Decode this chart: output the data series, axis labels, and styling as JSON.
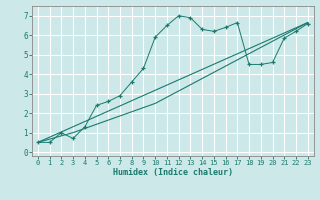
{
  "title": "",
  "xlabel": "Humidex (Indice chaleur)",
  "background_color": "#cce8e8",
  "grid_color": "#b0d4d4",
  "line_color": "#1a7a6e",
  "xlim": [
    -0.5,
    23.5
  ],
  "ylim": [
    -0.2,
    7.5
  ],
  "xticks": [
    0,
    1,
    2,
    3,
    4,
    5,
    6,
    7,
    8,
    9,
    10,
    11,
    12,
    13,
    14,
    15,
    16,
    17,
    18,
    19,
    20,
    21,
    22,
    23
  ],
  "yticks": [
    0,
    1,
    2,
    3,
    4,
    5,
    6,
    7
  ],
  "series1_x": [
    0,
    1,
    2,
    3,
    4,
    5,
    6,
    7,
    8,
    9,
    10,
    11,
    12,
    13,
    14,
    15,
    16,
    17,
    18,
    19,
    20,
    21,
    22,
    23
  ],
  "series1_y": [
    0.5,
    0.5,
    1.0,
    0.7,
    1.3,
    2.4,
    2.6,
    2.9,
    3.6,
    4.3,
    5.9,
    6.5,
    7.0,
    6.9,
    6.3,
    6.2,
    6.4,
    6.65,
    4.5,
    4.5,
    4.6,
    5.85,
    6.2,
    6.6
  ],
  "series2_x": [
    0,
    3,
    10,
    23
  ],
  "series2_y": [
    0.5,
    1.0,
    2.5,
    6.65
  ],
  "series3_x": [
    0,
    23
  ],
  "series3_y": [
    0.5,
    6.65
  ]
}
